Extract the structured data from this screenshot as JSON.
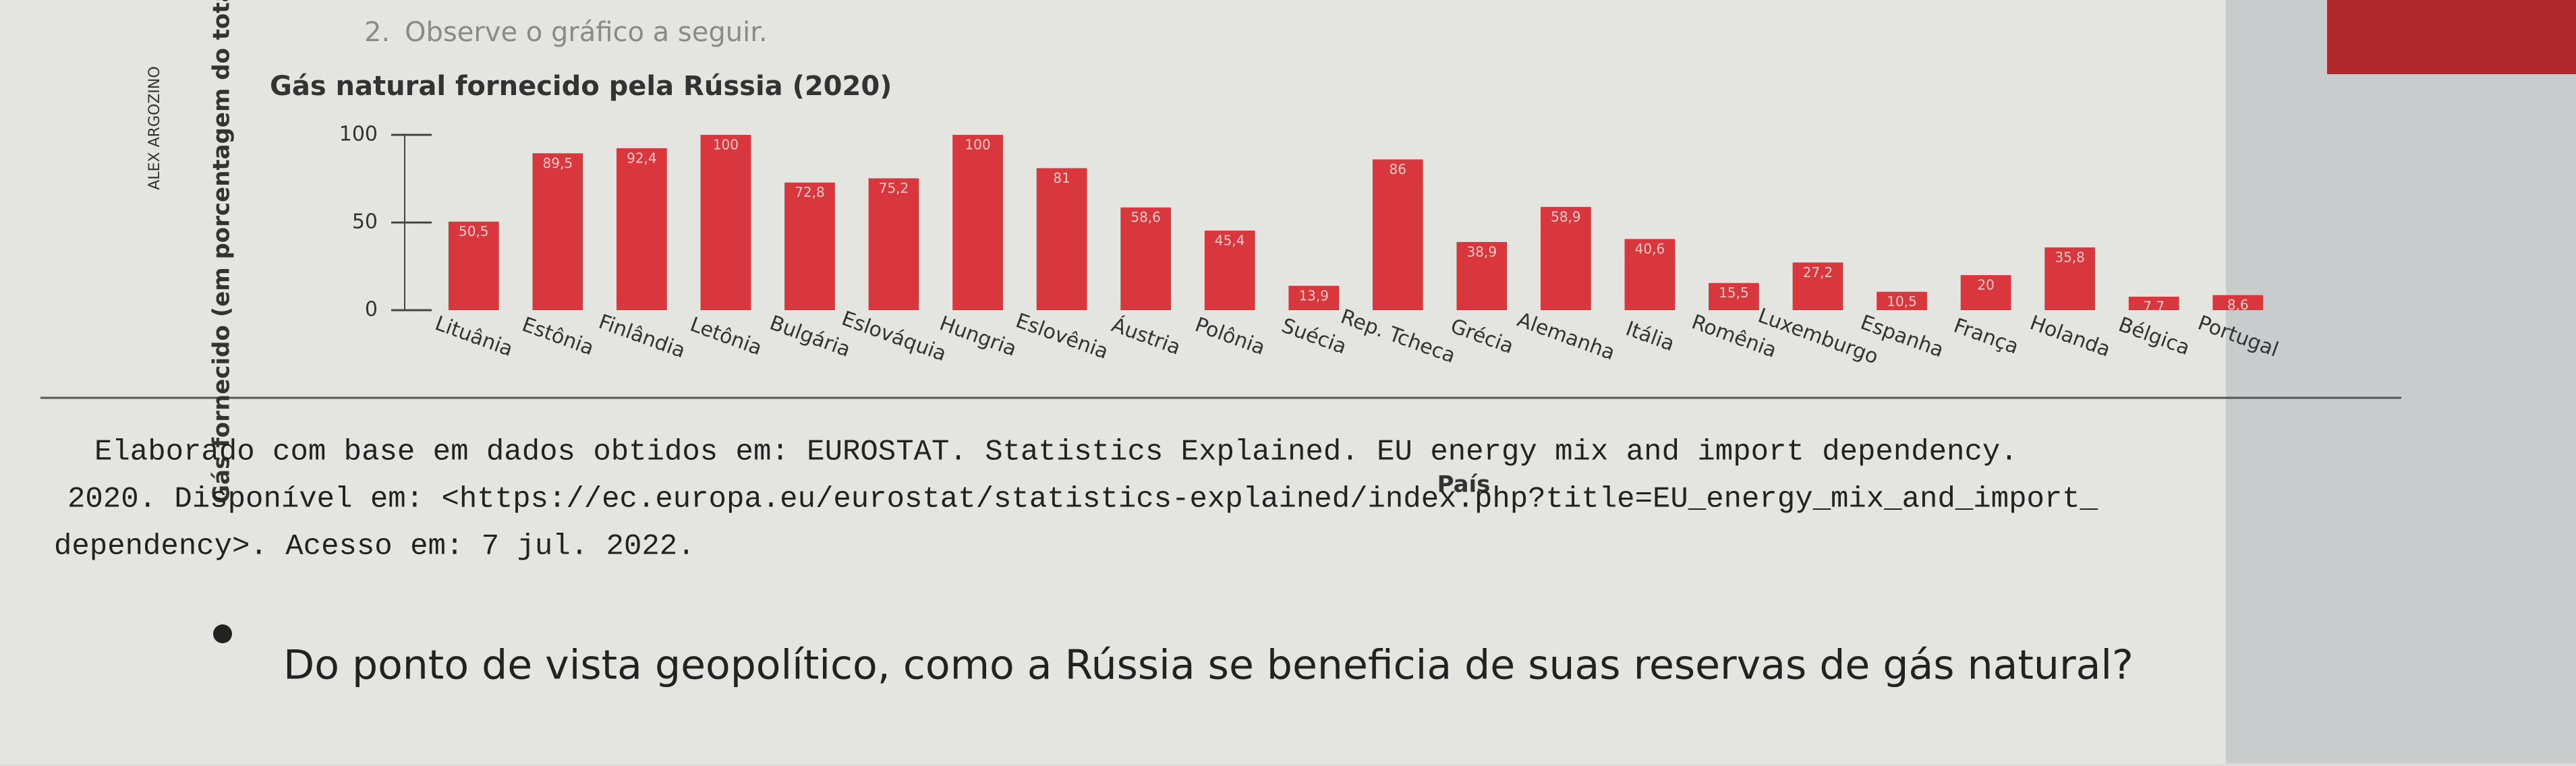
{
  "question_number": "2.",
  "instruction": "Observe o gráfico a seguir.",
  "chart_data": {
    "type": "bar",
    "title": "Gás natural fornecido pela Rússia (2020)",
    "credit": "ALEX ARGOZINO",
    "y_label": "Gás fornecido (em porcentagem do total)",
    "x_label": "País",
    "categories": [
      "Lituânia",
      "Estônia",
      "Finlândia",
      "Letônia",
      "Bulgária",
      "Eslováquia",
      "Hungria",
      "Eslovênia",
      "Áustria",
      "Polônia",
      "Suécia",
      "Rep. Tcheca",
      "Grécia",
      "Alemanha",
      "Itália",
      "Romênia",
      "Luxemburgo",
      "Espanha",
      "França",
      "Holanda",
      "Bélgica",
      "Portugal"
    ],
    "values": [
      50.5,
      89.5,
      92.4,
      100,
      72.8,
      75.2,
      100,
      81,
      58.6,
      45.4,
      13.9,
      86,
      38.9,
      58.9,
      40.6,
      15.5,
      27.2,
      10.5,
      20,
      35.8,
      7.7,
      8.6
    ],
    "value_labels": [
      "50,5",
      "89,5",
      "92,4",
      "100",
      "72,8",
      "75,2",
      "100",
      "81",
      "58,6",
      "45,4",
      "13,9",
      "86",
      "38,9",
      "58,9",
      "40,6",
      "15,5",
      "27,2",
      "10,5",
      "20",
      "35,8",
      "7,7",
      "8,6"
    ],
    "color": "#d8383d",
    "ylim": [
      0,
      100
    ],
    "yticks": [
      0,
      50,
      100
    ]
  },
  "source": [
    "Elaborado com base em dados obtidos em: EUROSTAT. Statistics Explained. EU energy mix and import dependency.",
    "2020. Disponível em: <https://ec.europa.eu/eurostat/statistics-explained/index.php?title=EU_energy_mix_and_import_",
    "dependency>. Acesso em: 7 jul. 2022."
  ],
  "question": "Do ponto de vista geopolítico, como a Rússia se beneficia de suas reservas de gás natural?"
}
